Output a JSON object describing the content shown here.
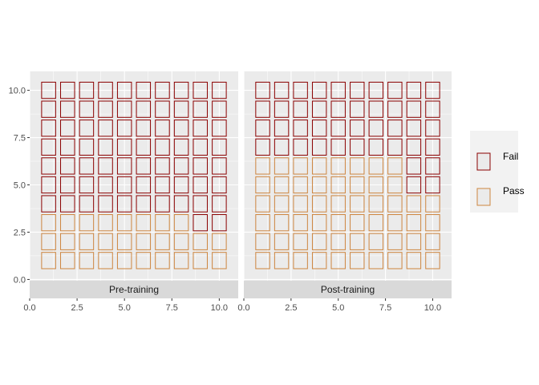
{
  "chart_data": {
    "type": "waffle",
    "x_ticks": [
      0.0,
      2.5,
      5.0,
      7.5,
      10.0
    ],
    "y_ticks": [
      0.0,
      2.5,
      5.0,
      7.5,
      10.0
    ],
    "x_tick_labels": [
      "0.0",
      "2.5",
      "5.0",
      "7.5",
      "10.0"
    ],
    "y_tick_labels": [
      "0.0",
      "2.5",
      "5.0",
      "7.5",
      "10.0"
    ],
    "xlim": [
      0,
      11
    ],
    "ylim": [
      -1,
      11
    ],
    "legend": {
      "position": "right",
      "items": [
        "Fail",
        "Pass"
      ]
    },
    "grid": true,
    "colors": {
      "Fail": "#8b0000",
      "Pass": "#cd853f",
      "panel": "#ebebeb",
      "strip": "#d9d9d9",
      "grid": "#ffffff"
    },
    "panels": [
      {
        "label": "Pre-training",
        "pass_rows_per_column": [
          3,
          3,
          3,
          3,
          3,
          3,
          3,
          3,
          2,
          2
        ]
      },
      {
        "label": "Post-training",
        "pass_rows_per_column": [
          6,
          6,
          6,
          6,
          6,
          6,
          6,
          6,
          4,
          4
        ]
      }
    ]
  }
}
